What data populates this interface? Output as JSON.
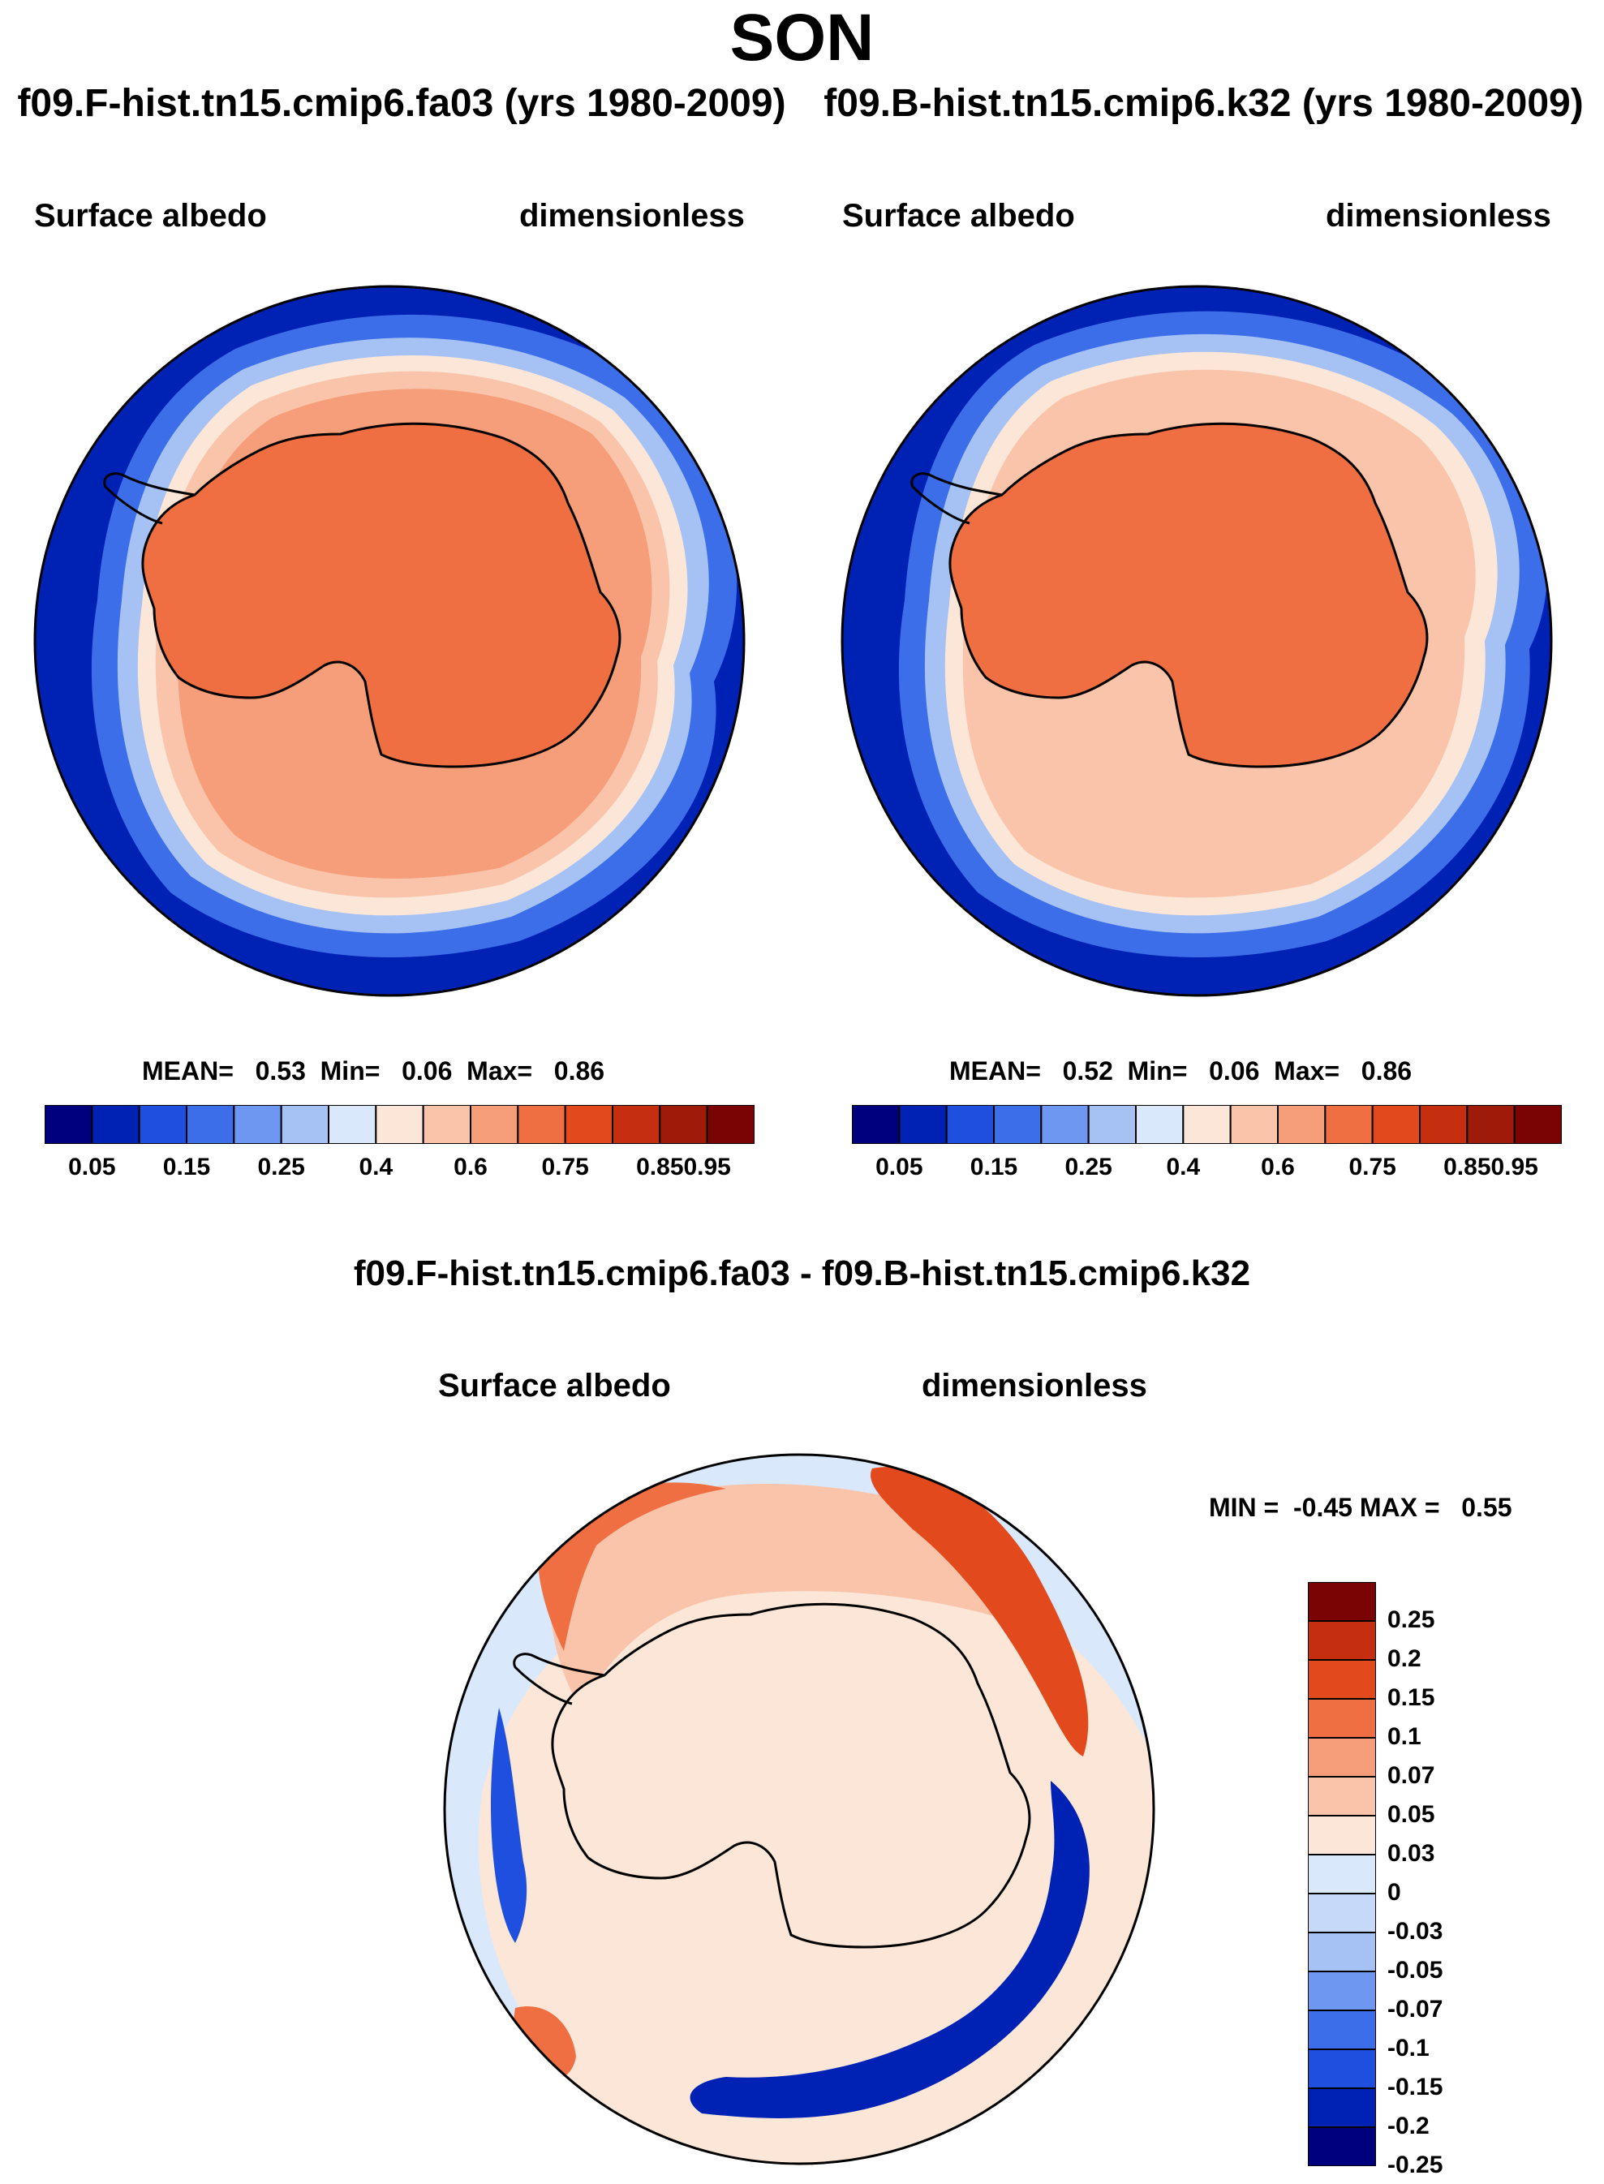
{
  "header": {
    "title": "SON",
    "case1": "f09.F-hist.tn15.cmip6.fa03 (yrs 1980-2009)",
    "case2": "f09.B-hist.tn15.cmip6.k32 (yrs 1980-2009)"
  },
  "panel1": {
    "variable": "Surface albedo",
    "units": "dimensionless",
    "stats": {
      "mean_label": "MEAN=",
      "mean": "0.53",
      "min_label": "Min=",
      "min": "0.06",
      "max_label": "Max=",
      "max": "0.86"
    }
  },
  "panel2": {
    "variable": "Surface albedo",
    "units": "dimensionless",
    "stats": {
      "mean_label": "MEAN=",
      "mean": "0.52",
      "min_label": "Min=",
      "min": "0.06",
      "max_label": "Max=",
      "max": "0.86"
    }
  },
  "diff_panel": {
    "title": "f09.F-hist.tn15.cmip6.fa03 - f09.B-hist.tn15.cmip6.k32",
    "variable": "Surface albedo",
    "units": "dimensionless",
    "stats": {
      "min_label": "MIN =",
      "min": "-0.45",
      "max_label": "MAX =",
      "max": "0.55"
    }
  },
  "colorbar_abs": {
    "colors": [
      "#00007f",
      "#0022b4",
      "#1f4fde",
      "#3d6ee9",
      "#6d97f0",
      "#a6c2f5",
      "#d9e8fb",
      "#fbe6d8",
      "#f9c4aa",
      "#f59e79",
      "#ef6f43",
      "#e24a1d",
      "#c52e0f",
      "#9e1b0a",
      "#7a0403"
    ],
    "labels": [
      "0.05",
      "0.15",
      "0.25",
      "0.4",
      "0.6",
      "0.75",
      "0.85",
      "0.95"
    ]
  },
  "colorbar_diff": {
    "colors": [
      "#00007f",
      "#0022b4",
      "#1f4fde",
      "#3d6ee9",
      "#6d97f0",
      "#a6c2f5",
      "#c6d9f8",
      "#d9e8fb",
      "#fbe6d8",
      "#f9c4aa",
      "#f59e79",
      "#ef6f43",
      "#e24a1d",
      "#c52e0f",
      "#7a0403"
    ],
    "labels": [
      "0.25",
      "0.2",
      "0.15",
      "0.1",
      "0.07",
      "0.05",
      "0.03",
      "0",
      "-0.03",
      "-0.05",
      "-0.07",
      "-0.1",
      "-0.15",
      "-0.2",
      "-0.25"
    ]
  }
}
